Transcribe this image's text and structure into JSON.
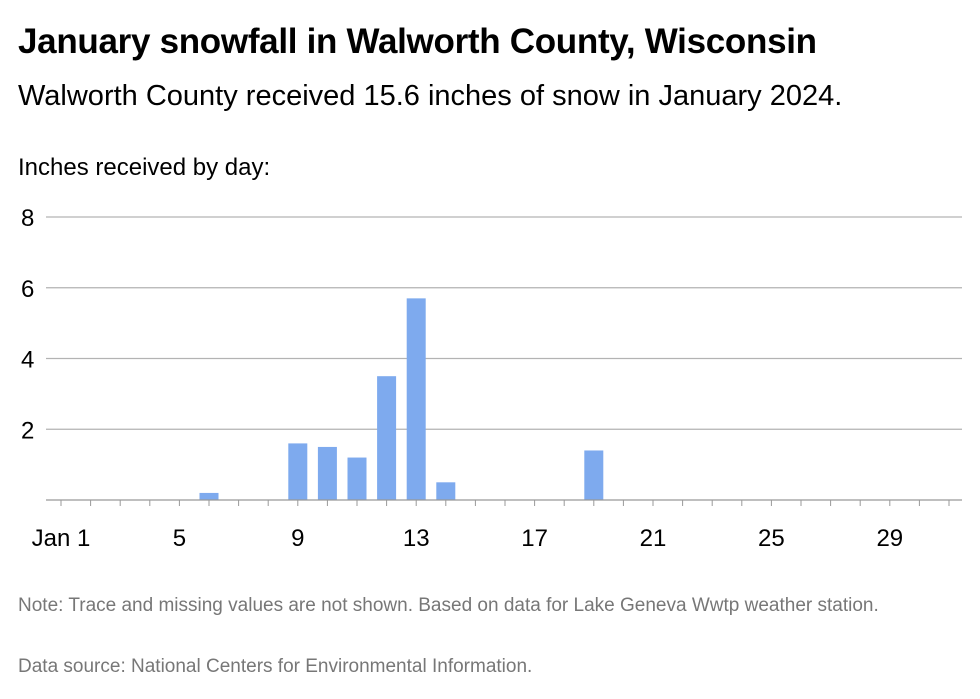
{
  "title": "January snowfall in Walworth County, Wisconsin",
  "subtitle": "Walworth County received 15.6 inches of snow in January 2024.",
  "note": "Note: Trace and missing values are not shown. Based on data for Lake Geneva Wwtp weather station.",
  "source": "Data source: National Centers for Environmental Information.",
  "colors": {
    "bar": "#7eaaee",
    "grid": "#b3b3b3",
    "axis": "#999999"
  },
  "chart_data": {
    "type": "bar",
    "title": "January snowfall in Walworth County, Wisconsin",
    "ylabel": "Inches received by day:",
    "xlabel": "",
    "x_ticks": [
      {
        "day": 1,
        "label": "Jan 1"
      },
      {
        "day": 5,
        "label": "5"
      },
      {
        "day": 9,
        "label": "9"
      },
      {
        "day": 13,
        "label": "13"
      },
      {
        "day": 17,
        "label": "17"
      },
      {
        "day": 21,
        "label": "21"
      },
      {
        "day": 25,
        "label": "25"
      },
      {
        "day": 29,
        "label": "29"
      }
    ],
    "y_ticks": [
      2,
      4,
      6,
      8
    ],
    "xlim": [
      1,
      31
    ],
    "ylim": [
      0,
      8
    ],
    "grid": true,
    "values": [
      {
        "day": 6,
        "inches": 0.2
      },
      {
        "day": 9,
        "inches": 1.6
      },
      {
        "day": 10,
        "inches": 1.5
      },
      {
        "day": 11,
        "inches": 1.2
      },
      {
        "day": 12,
        "inches": 3.5
      },
      {
        "day": 13,
        "inches": 5.7
      },
      {
        "day": 14,
        "inches": 0.5
      },
      {
        "day": 19,
        "inches": 1.4
      }
    ]
  }
}
